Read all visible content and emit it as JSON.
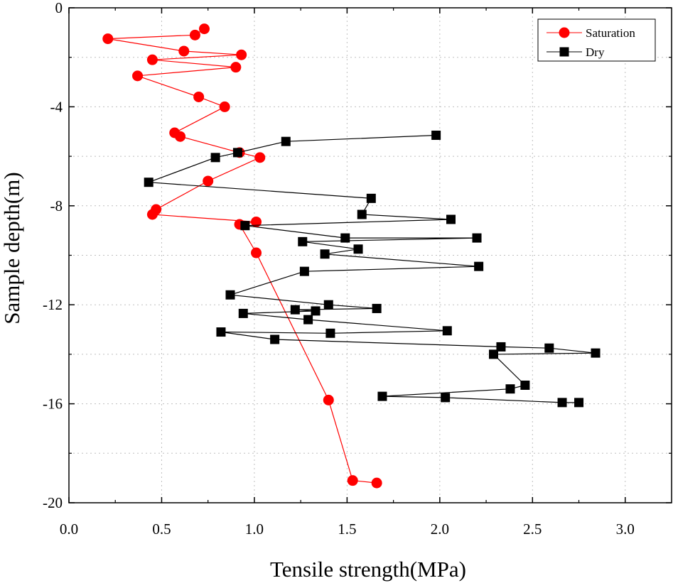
{
  "chart_data": {
    "type": "line",
    "title": "",
    "xlabel": "Tensile strength(MPa)",
    "ylabel": "Sample depth(m)",
    "xlim": [
      0.0,
      3.25
    ],
    "ylim": [
      -20,
      0
    ],
    "x_ticks": [
      0.0,
      0.5,
      1.0,
      1.5,
      2.0,
      2.5,
      3.0
    ],
    "x_tick_labels": [
      "0.0",
      "0.5",
      "1.0",
      "1.5",
      "2.0",
      "2.5",
      "3.0"
    ],
    "y_ticks": [
      0,
      -4,
      -8,
      -12,
      -16,
      -20
    ],
    "y_tick_labels": [
      "0",
      "-4",
      "-8",
      "-12",
      "-16",
      "-20"
    ],
    "grid": true,
    "legend_position": "top-right",
    "series": [
      {
        "name": "Saturation",
        "color": "#ff0000",
        "marker": "circle",
        "points": [
          [
            0.73,
            -0.85
          ],
          [
            0.68,
            -1.1
          ],
          [
            0.21,
            -1.25
          ],
          [
            0.62,
            -1.75
          ],
          [
            0.93,
            -1.9
          ],
          [
            0.45,
            -2.1
          ],
          [
            0.9,
            -2.4
          ],
          [
            0.37,
            -2.75
          ],
          [
            0.7,
            -3.6
          ],
          [
            0.84,
            -4.0
          ],
          [
            0.57,
            -5.05
          ],
          [
            0.6,
            -5.2
          ],
          [
            0.92,
            -5.85
          ],
          [
            1.03,
            -6.05
          ],
          [
            0.75,
            -7.0
          ],
          [
            0.47,
            -8.15
          ],
          [
            0.45,
            -8.35
          ],
          [
            1.01,
            -8.65
          ],
          [
            0.92,
            -8.75
          ],
          [
            1.01,
            -9.9
          ],
          [
            1.4,
            -15.85
          ],
          [
            1.53,
            -19.1
          ],
          [
            1.66,
            -19.2
          ]
        ]
      },
      {
        "name": "Dry",
        "color": "#000000",
        "marker": "square",
        "points": [
          [
            1.98,
            -5.15
          ],
          [
            1.17,
            -5.4
          ],
          [
            0.91,
            -5.85
          ],
          [
            0.79,
            -6.05
          ],
          [
            0.43,
            -7.05
          ],
          [
            1.63,
            -7.7
          ],
          [
            1.58,
            -8.35
          ],
          [
            2.06,
            -8.55
          ],
          [
            0.95,
            -8.8
          ],
          [
            1.49,
            -9.3
          ],
          [
            2.2,
            -9.3
          ],
          [
            1.26,
            -9.45
          ],
          [
            1.56,
            -9.75
          ],
          [
            1.38,
            -9.95
          ],
          [
            2.21,
            -10.45
          ],
          [
            1.27,
            -10.65
          ],
          [
            0.87,
            -11.6
          ],
          [
            1.4,
            -12.0
          ],
          [
            1.66,
            -12.15
          ],
          [
            1.22,
            -12.2
          ],
          [
            1.33,
            -12.25
          ],
          [
            0.94,
            -12.35
          ],
          [
            1.29,
            -12.6
          ],
          [
            2.04,
            -13.05
          ],
          [
            1.41,
            -13.15
          ],
          [
            0.82,
            -13.1
          ],
          [
            1.11,
            -13.4
          ],
          [
            2.33,
            -13.7
          ],
          [
            2.59,
            -13.75
          ],
          [
            2.84,
            -13.95
          ],
          [
            2.29,
            -14.0
          ],
          [
            2.46,
            -15.25
          ],
          [
            2.38,
            -15.4
          ],
          [
            1.69,
            -15.7
          ],
          [
            2.03,
            -15.75
          ],
          [
            2.66,
            -15.95
          ],
          [
            2.75,
            -15.95
          ]
        ]
      }
    ]
  }
}
